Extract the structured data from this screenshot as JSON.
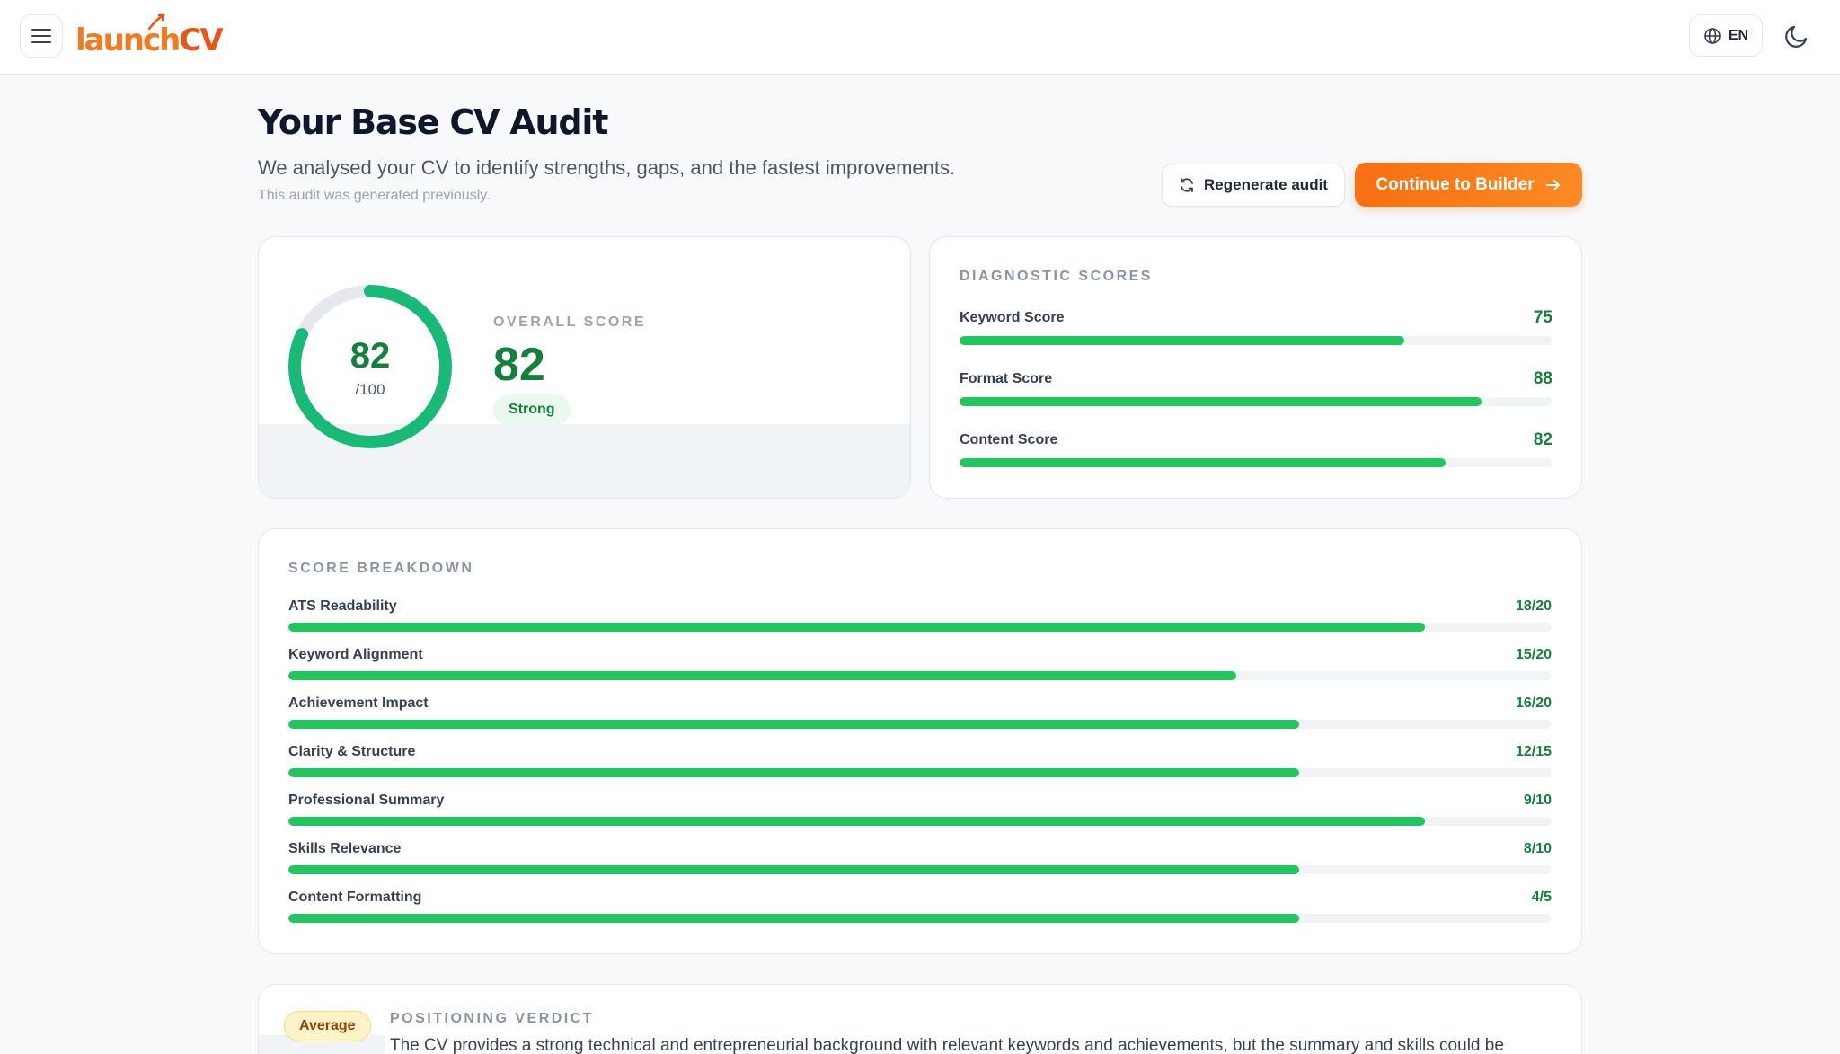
{
  "header": {
    "menu_icon": "hamburger-icon",
    "logo_part1": "launch",
    "logo_part2": "CV",
    "language_label": "EN",
    "language_icon": "globe-icon",
    "theme_icon": "moon-icon"
  },
  "page": {
    "title": "Your Base CV Audit",
    "subtitle": "We analysed your CV to identify strengths, gaps, and the fastest improvements.",
    "note": "This audit was generated previously.",
    "regenerate_label": "Regenerate audit",
    "continue_label": "Continue to Builder"
  },
  "overall": {
    "ring_value": "82",
    "ring_denominator": "/100",
    "label": "OVERALL SCORE",
    "value": "82",
    "score_fraction": 0.82,
    "badge": "Strong"
  },
  "diagnostic": {
    "label": "DIAGNOSTIC SCORES",
    "items": [
      {
        "label": "Keyword Score",
        "value": "75",
        "fraction": 0.75
      },
      {
        "label": "Format Score",
        "value": "88",
        "fraction": 0.88
      },
      {
        "label": "Content Score",
        "value": "82",
        "fraction": 0.82
      }
    ]
  },
  "breakdown": {
    "label": "SCORE BREAKDOWN",
    "items": [
      {
        "label": "ATS Readability",
        "value": "18/20",
        "fraction": 0.9
      },
      {
        "label": "Keyword Alignment",
        "value": "15/20",
        "fraction": 0.75
      },
      {
        "label": "Achievement Impact",
        "value": "16/20",
        "fraction": 0.8
      },
      {
        "label": "Clarity & Structure",
        "value": "12/15",
        "fraction": 0.8
      },
      {
        "label": "Professional Summary",
        "value": "9/10",
        "fraction": 0.9
      },
      {
        "label": "Skills Relevance",
        "value": "8/10",
        "fraction": 0.8
      },
      {
        "label": "Content Formatting",
        "value": "4/5",
        "fraction": 0.8
      }
    ]
  },
  "verdict": {
    "badge": "Average",
    "label": "POSITIONING VERDICT",
    "text": "The CV provides a strong technical and entrepreneurial background with relevant keywords and achievements, but the summary and skills could be"
  },
  "colors": {
    "accent": "#f76f12",
    "success": "#22c55e",
    "success_text": "#15803d"
  }
}
